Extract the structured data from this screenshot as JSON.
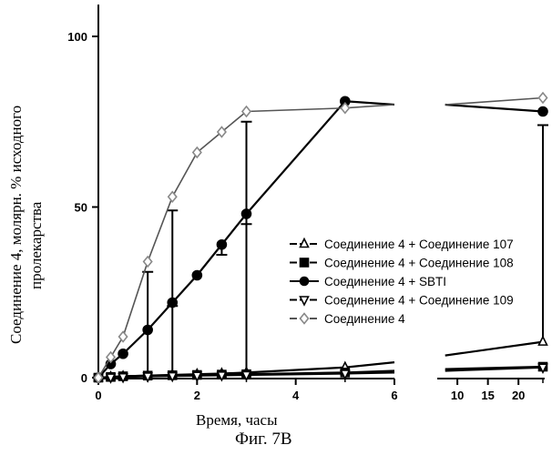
{
  "chart_data": {
    "type": "line",
    "title": "",
    "caption": "Фиг. 7В",
    "xlabel": "Время, часы",
    "ylabel_lines": [
      "Соединение 4, молярн. % исходного",
      "пролекарства"
    ],
    "ylim": [
      0,
      100
    ],
    "y_ticks": [
      "0",
      "50",
      "100"
    ],
    "x_ticks_left": [
      "0",
      "2",
      "4",
      "6"
    ],
    "x_ticks_right": [
      "10",
      "15",
      "20"
    ],
    "legend_position": "right",
    "series": [
      {
        "name": "Соединение 4 + Соединение 107",
        "marker": "triangle-up",
        "x": [
          0,
          0.25,
          0.5,
          1,
          1.5,
          2,
          2.5,
          3,
          5,
          6,
          8,
          24
        ],
        "y": [
          0,
          0.2,
          0.4,
          0.6,
          0.8,
          1.0,
          1.2,
          1.5,
          3.0,
          4.5,
          6.5,
          10.5
        ],
        "error_x": [
          1,
          1.5,
          3,
          24
        ],
        "error_y": [
          31,
          49,
          75,
          74
        ]
      },
      {
        "name": "Соединение 4 + Соединение 108",
        "marker": "square",
        "x": [
          0,
          0.25,
          0.5,
          1,
          1.5,
          2,
          2.5,
          3,
          5,
          6,
          8,
          24
        ],
        "y": [
          0,
          0.2,
          0.4,
          0.6,
          0.7,
          0.8,
          0.9,
          1.0,
          1.5,
          2.0,
          2.5,
          3.2
        ]
      },
      {
        "name": "Соединение 4 + SBTI",
        "marker": "circle",
        "x": [
          0,
          0.25,
          0.5,
          1,
          1.5,
          2,
          2.5,
          3,
          5,
          6,
          8,
          24
        ],
        "y": [
          0,
          4,
          7,
          14,
          22,
          30,
          39,
          48,
          81,
          80,
          80,
          78
        ],
        "error_x": [
          1.5,
          2.5,
          3
        ],
        "error_y": [
          21,
          36,
          45
        ]
      },
      {
        "name": "Соединение 4 + Соединение 109",
        "marker": "triangle-down",
        "x": [
          0,
          0.25,
          0.5,
          1,
          1.5,
          2,
          2.5,
          3,
          5,
          6,
          8,
          24
        ],
        "y": [
          0,
          0.1,
          0.2,
          0.4,
          0.5,
          0.6,
          0.7,
          0.8,
          1.2,
          1.5,
          2.0,
          3.0
        ]
      },
      {
        "name": "Соединение 4",
        "marker": "diamond",
        "x": [
          0,
          0.25,
          0.5,
          1,
          1.5,
          2,
          2.5,
          3,
          5,
          6,
          8,
          24
        ],
        "y": [
          0,
          6,
          12,
          34,
          53,
          66,
          72,
          78,
          79,
          80,
          80,
          82
        ]
      }
    ]
  }
}
